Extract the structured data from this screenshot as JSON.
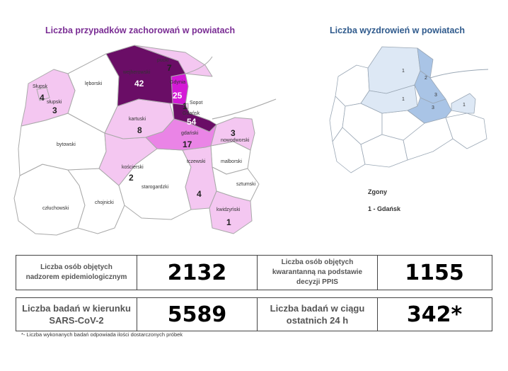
{
  "left_map": {
    "title": "Liczba przypadków zachorowań w powiatach",
    "counties": [
      {
        "id": "wejherowski",
        "name": "wejherowski",
        "count": "42"
      },
      {
        "id": "pucki",
        "name": "pucki",
        "count": "7"
      },
      {
        "id": "gdynia",
        "name": "Gdynia",
        "count": "25"
      },
      {
        "id": "sopot",
        "name": "Sopot",
        "count": "1"
      },
      {
        "id": "gdansk",
        "name": "Gdańsk",
        "count": "54"
      },
      {
        "id": "gdanski",
        "name": "gdański",
        "count": "17"
      },
      {
        "id": "kartuski",
        "name": "kartuski",
        "count": "8"
      },
      {
        "id": "nowodworski",
        "name": "nowodworski",
        "count": "3"
      },
      {
        "id": "lęborski",
        "name": "lęborski",
        "count": ""
      },
      {
        "id": "slupsk",
        "name": "Słupsk",
        "count": "4"
      },
      {
        "id": "slupski",
        "name": "słupski",
        "count": "3"
      },
      {
        "id": "bytowski",
        "name": "bytowski",
        "count": ""
      },
      {
        "id": "koscierski",
        "name": "kościerski",
        "count": "2"
      },
      {
        "id": "tczewski",
        "name": "tczewski",
        "count": "4"
      },
      {
        "id": "malborski",
        "name": "malborski",
        "count": ""
      },
      {
        "id": "starogardzki",
        "name": "starogardzki",
        "count": ""
      },
      {
        "id": "sztumski",
        "name": "sztumski",
        "count": ""
      },
      {
        "id": "chojnicki",
        "name": "chojnicki",
        "count": ""
      },
      {
        "id": "czluchowski",
        "name": "człuchowski",
        "count": ""
      },
      {
        "id": "kwidzynski",
        "name": "kwidzyński",
        "count": "1"
      }
    ],
    "colors": {
      "none": "#ffffff",
      "low": "#f4c7f1",
      "mid": "#ea84e6",
      "high": "#d41ad6",
      "top": "#6a0d66",
      "border": "#aaaaaa"
    }
  },
  "right_map": {
    "title": "Liczba wyzdrowień w powiatach",
    "values": [
      "1",
      "2",
      "1",
      "3",
      "3",
      "1"
    ],
    "colors": {
      "light": "#dde8f5",
      "mid": "#a9c4e6",
      "border": "#9aa7b5"
    }
  },
  "deaths": {
    "title": "Zgony",
    "entry": "1 - Gdańsk"
  },
  "stats": [
    {
      "label": "Liczba osób objętych nadzorem epidemiologicznym",
      "value": "2132"
    },
    {
      "label": "Liczba osób objętych kwarantanną na podstawie decyzji PPIS",
      "value": "1155"
    },
    {
      "label": "Liczba badań w kierunku SARS-CoV-2",
      "value": "5589"
    },
    {
      "label": "Liczba badań w ciągu ostatnich 24 h",
      "value": "342*"
    }
  ],
  "footnote": "*- Liczba wykonanych badań odpowiada ilości dostarczonych próbek"
}
